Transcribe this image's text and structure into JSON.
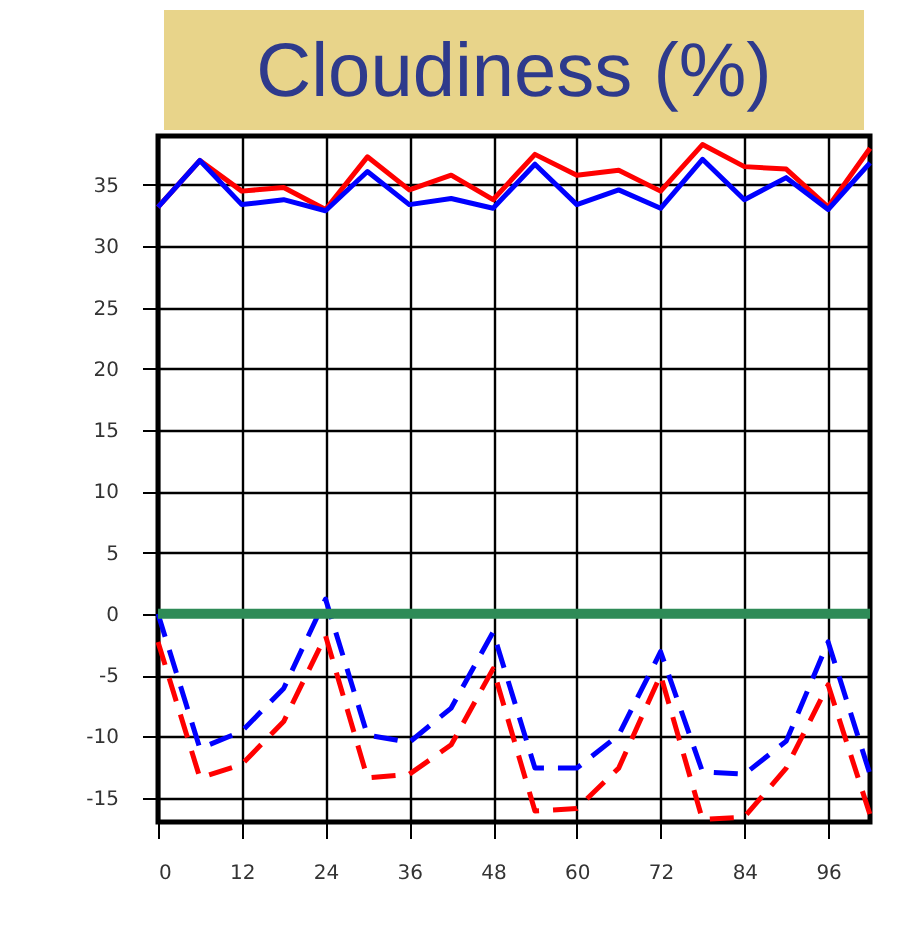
{
  "chart_data": {
    "type": "line",
    "title": "Cloudiness (%)",
    "x": [
      0,
      6,
      12,
      18,
      24,
      30,
      36,
      42,
      48,
      54,
      60,
      66,
      72,
      78,
      84,
      90,
      96,
      102
    ],
    "series": [
      {
        "color": "#ff0000",
        "line_style": "solid",
        "values": [
          33.2,
          37,
          34.5,
          34.8,
          33,
          37.3,
          34.6,
          35.8,
          33.8,
          37.5,
          35.8,
          36.2,
          34.5,
          38.3,
          36.5,
          36.3,
          33.2,
          38
        ]
      },
      {
        "color": "#0000ff",
        "line_style": "solid",
        "values": [
          33.2,
          37,
          33.4,
          33.8,
          32.9,
          36.1,
          33.4,
          33.9,
          33.1,
          36.7,
          33.4,
          34.6,
          33.1,
          37.1,
          33.8,
          35.6,
          33,
          36.8
        ]
      },
      {
        "color": "#ff0000",
        "line_style": "dashed",
        "values": [
          -2.3,
          -13.4,
          -12.3,
          -8.8,
          -1.8,
          -13.4,
          -13.1,
          -10.7,
          -4.5,
          -16.1,
          -15.9,
          -12.6,
          -5,
          -16.8,
          -16.6,
          -12.6,
          -5.8,
          -16.4
        ]
      },
      {
        "color": "#0000ff",
        "line_style": "dashed",
        "values": [
          0,
          -11,
          -9.6,
          -6.1,
          1.2,
          -9.9,
          -10.5,
          -7.7,
          -1.5,
          -12.6,
          -12.6,
          -9.9,
          -3.1,
          -12.9,
          -13.1,
          -10.4,
          -2.3,
          -13.1
        ]
      }
    ],
    "xlim": [
      0,
      102
    ],
    "xticks": [
      0,
      12,
      24,
      36,
      48,
      60,
      72,
      84,
      96
    ],
    "ylim": [
      -17,
      39
    ],
    "yticks": [
      -15,
      -10,
      -5,
      0,
      5,
      10,
      15,
      20,
      25,
      30,
      35
    ],
    "grid": true,
    "marker": "none",
    "ref_lines": [
      {
        "axis": "y",
        "value": 0,
        "color": "#2e8b57"
      }
    ]
  }
}
